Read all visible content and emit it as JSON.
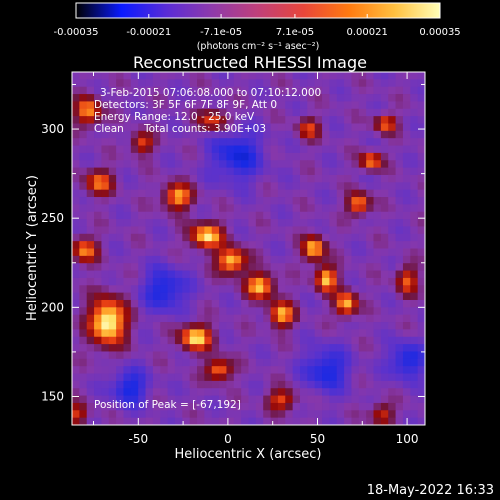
{
  "chart_data": {
    "type": "heatmap",
    "title": "Reconstructed RHESSI Image",
    "xlabel": "Heliocentric X (arcsec)",
    "ylabel": "Heliocentric Y (arcsec)",
    "xlim": [
      -87,
      110
    ],
    "ylim": [
      134,
      332
    ],
    "x_ticks": [
      -50,
      0,
      50,
      100
    ],
    "x_tick_labels": [
      "-50",
      "0",
      "50",
      "100"
    ],
    "y_ticks": [
      150,
      200,
      250,
      300
    ],
    "y_tick_labels": [
      "150",
      "200",
      "250",
      "300"
    ],
    "colorbar": {
      "range": [
        -0.00035,
        0.00035
      ],
      "ticks": [
        -0.00035,
        -0.00021,
        -7.1e-05,
        7.1e-05,
        0.00021,
        0.00035
      ],
      "tick_labels": [
        "-0.00035",
        "-0.00021",
        "-7.1e-05",
        "7.1e-05",
        "0.00021",
        "0.00035"
      ],
      "units_label": "(photons cm⁻² s⁻¹ asec⁻²)",
      "colormap": [
        "#000000",
        "#0a1aff",
        "#5a2cd6",
        "#8f3aaa",
        "#c0407a",
        "#e8463a",
        "#ff7a10",
        "#ffc040",
        "#ffffb8"
      ]
    },
    "annotations": {
      "time_range": "3-Feb-2015 07:06:08.000 to 07:10:12.000",
      "detectors": "Detectors: 3F 5F 6F 7F 8F 9F, Att 0",
      "energy_range": "Energy Range: 12.0 - 25.0 keV",
      "method": "Clean",
      "counts": "Total counts: 3.90E+03",
      "peak": "Position of Peak = [-67,192]"
    },
    "peak": {
      "x": -67,
      "y": 192
    },
    "grid": false
  },
  "footer": {
    "timestamp": "18-May-2022 16:33"
  }
}
